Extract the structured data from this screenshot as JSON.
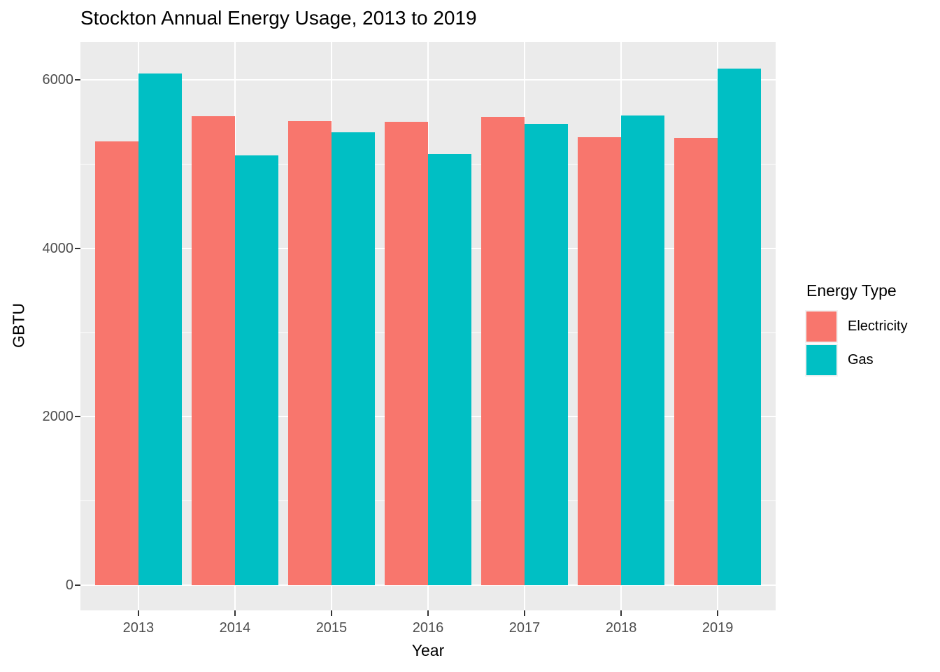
{
  "chart_data": {
    "type": "bar",
    "title": "Stockton Annual Energy Usage, 2013 to 2019",
    "xlabel": "Year",
    "ylabel": "GBTU",
    "legend_title": "Energy Type",
    "legend_position": "right",
    "categories": [
      "2013",
      "2014",
      "2015",
      "2016",
      "2017",
      "2018",
      "2019"
    ],
    "series": [
      {
        "name": "Electricity",
        "color": "#F8766D",
        "values": [
          5270,
          5570,
          5510,
          5500,
          5560,
          5320,
          5310
        ]
      },
      {
        "name": "Gas",
        "color": "#00BFC4",
        "values": [
          6080,
          5100,
          5380,
          5120,
          5480,
          5580,
          6130
        ]
      }
    ],
    "ylim": [
      -300,
      6450
    ],
    "yticks_major": [
      0,
      2000,
      4000,
      6000
    ],
    "yticks_minor": [
      1000,
      3000,
      5000
    ],
    "grid": true,
    "style": {
      "panel_bg": "#EBEBEB",
      "grid_color": "#FFFFFF",
      "tick_label_color": "#4D4D4D",
      "tick_mark_color": "#333333",
      "text_color": "#000000",
      "background": "#FFFFFF"
    }
  }
}
